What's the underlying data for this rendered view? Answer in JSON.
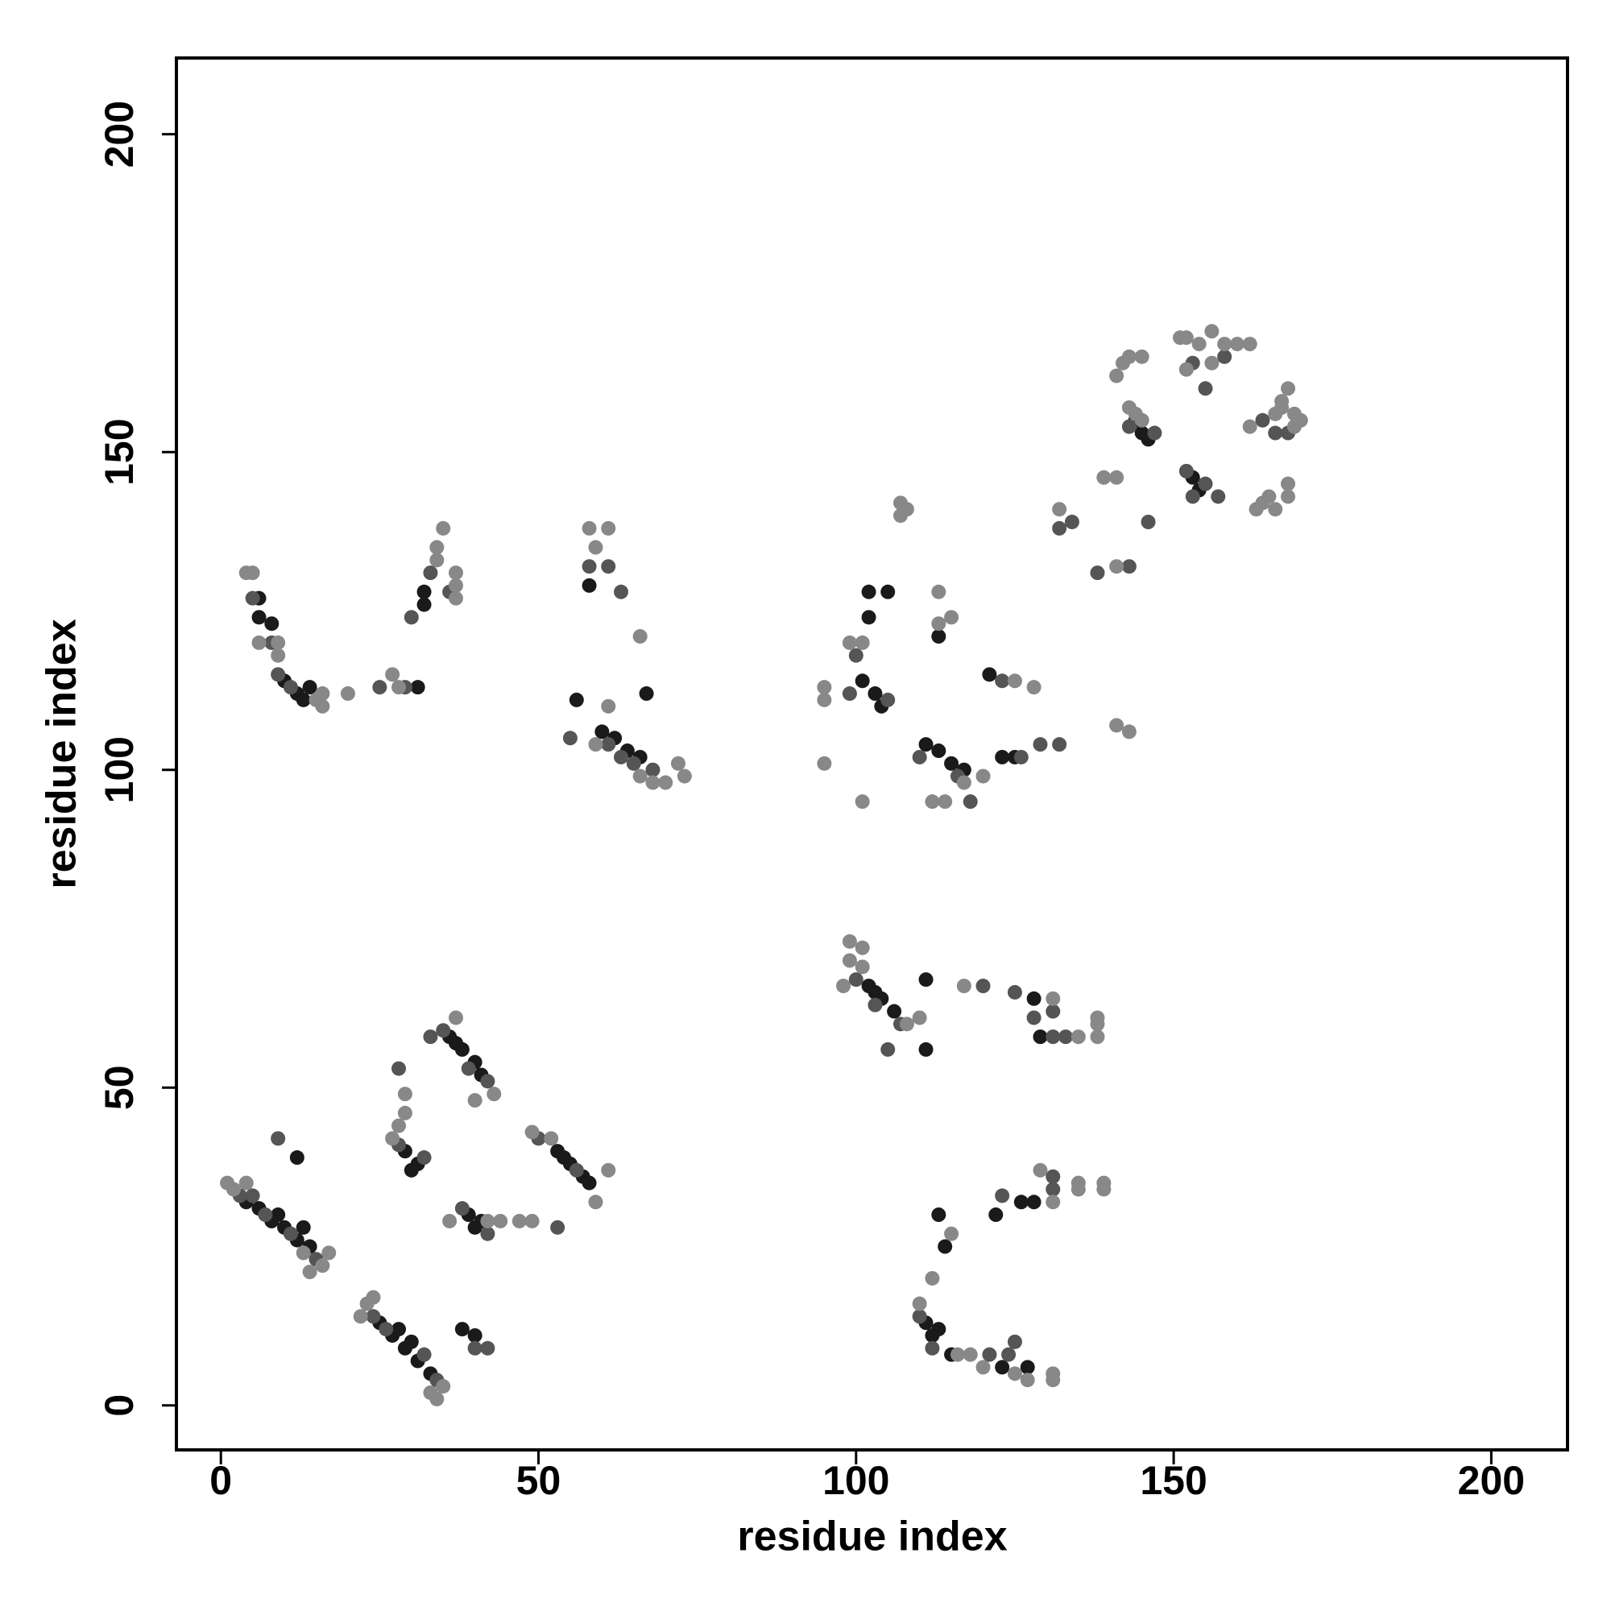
{
  "chart_data": {
    "type": "scatter",
    "x_label": "residue index",
    "y_label": "residue index",
    "xlim": [
      -7,
      212
    ],
    "ylim": [
      -7,
      212
    ],
    "xticks": [
      0,
      50,
      100,
      150,
      200
    ],
    "yticks": [
      0,
      50,
      100,
      150,
      200
    ],
    "series": [
      {
        "color": "#1a1a1a",
        "x": [
          4,
          6,
          8,
          10,
          12,
          14,
          9,
          13,
          25,
          27,
          29,
          30,
          31,
          33,
          28,
          36,
          38,
          40,
          41,
          37,
          29,
          31,
          30,
          39,
          40,
          41,
          53,
          55,
          57,
          58,
          54,
          38,
          40,
          12,
          6,
          6,
          8,
          10,
          12,
          13,
          14,
          31,
          32,
          32,
          58,
          60,
          62,
          64,
          66,
          67,
          56,
          101,
          103,
          104,
          102,
          102,
          105,
          111,
          113,
          115,
          117,
          113,
          121,
          123,
          125,
          102,
          104,
          106,
          103,
          111,
          111,
          128,
          129,
          111,
          112,
          113,
          115,
          113,
          114,
          126,
          128,
          122,
          127,
          123,
          145,
          146,
          153,
          154,
          144
        ],
        "values": [
          32,
          31,
          29,
          28,
          26,
          25,
          30,
          28,
          13,
          11,
          9,
          10,
          7,
          5,
          12,
          58,
          56,
          54,
          52,
          57,
          40,
          38,
          37,
          30,
          28,
          29,
          40,
          38,
          36,
          35,
          39,
          12,
          11,
          39,
          127,
          124,
          123,
          114,
          112,
          111,
          113,
          113,
          128,
          126,
          129,
          106,
          105,
          103,
          102,
          112,
          111,
          114,
          112,
          110,
          124,
          128,
          128,
          104,
          103,
          101,
          100,
          121,
          115,
          102,
          102,
          66,
          64,
          62,
          65,
          67,
          56,
          64,
          58,
          13,
          11,
          12,
          8,
          30,
          25,
          32,
          32,
          30,
          6,
          6,
          153,
          152,
          146,
          144,
          155
        ]
      },
      {
        "color": "#555555",
        "x": [
          3,
          5,
          7,
          11,
          15,
          24,
          26,
          32,
          34,
          35,
          39,
          42,
          28,
          28,
          32,
          33,
          38,
          42,
          50,
          56,
          53,
          9,
          40,
          42,
          5,
          8,
          9,
          11,
          25,
          29,
          30,
          33,
          36,
          58,
          61,
          63,
          55,
          61,
          63,
          65,
          68,
          100,
          99,
          105,
          110,
          116,
          123,
          118,
          126,
          129,
          132,
          100,
          103,
          107,
          105,
          120,
          125,
          128,
          131,
          131,
          133,
          110,
          112,
          121,
          124,
          125,
          131,
          131,
          123,
          132,
          134,
          143,
          138,
          146,
          152,
          153,
          155,
          157,
          155,
          153,
          158,
          164,
          166,
          168,
          143,
          147
        ],
        "values": [
          33,
          33,
          30,
          27,
          23,
          14,
          12,
          8,
          4,
          59,
          53,
          51,
          53,
          41,
          39,
          58,
          31,
          27,
          42,
          37,
          28,
          42,
          9,
          9,
          127,
          120,
          115,
          113,
          113,
          113,
          124,
          131,
          128,
          132,
          132,
          128,
          105,
          104,
          102,
          101,
          100,
          118,
          112,
          111,
          102,
          99,
          114,
          95,
          102,
          104,
          104,
          67,
          63,
          60,
          56,
          66,
          65,
          61,
          62,
          58,
          58,
          14,
          9,
          8,
          8,
          10,
          34,
          36,
          33,
          138,
          139,
          132,
          131,
          139,
          147,
          143,
          145,
          143,
          160,
          164,
          165,
          155,
          153,
          153,
          154,
          153
        ]
      },
      {
        "color": "#888888",
        "x": [
          1,
          2,
          4,
          13,
          14,
          16,
          17,
          22,
          23,
          24,
          33,
          34,
          35,
          37,
          40,
          43,
          28,
          29,
          27,
          29,
          36,
          42,
          44,
          47,
          49,
          52,
          59,
          61,
          49,
          4,
          5,
          6,
          9,
          9,
          15,
          16,
          16,
          20,
          27,
          28,
          34,
          34,
          35,
          37,
          37,
          37,
          58,
          59,
          61,
          61,
          59,
          66,
          66,
          68,
          70,
          72,
          73,
          95,
          95,
          95,
          99,
          101,
          101,
          107,
          107,
          108,
          113,
          113,
          115,
          112,
          114,
          117,
          120,
          125,
          128,
          99,
          99,
          101,
          101,
          98,
          108,
          110,
          117,
          131,
          135,
          138,
          138,
          138,
          110,
          116,
          118,
          120,
          115,
          125,
          127,
          131,
          131,
          129,
          131,
          135,
          135,
          139,
          139,
          112,
          132,
          139,
          141,
          141,
          141,
          142,
          143,
          145,
          141,
          143,
          143,
          144,
          145,
          151,
          152,
          154,
          156,
          158,
          160,
          162,
          152,
          156,
          163,
          164,
          165,
          166,
          168,
          168,
          167,
          168,
          169,
          169,
          170,
          167,
          162,
          166
        ],
        "values": [
          35,
          34,
          35,
          24,
          21,
          22,
          24,
          14,
          16,
          17,
          2,
          1,
          3,
          61,
          48,
          49,
          44,
          46,
          42,
          49,
          29,
          29,
          29,
          29,
          43,
          42,
          32,
          37,
          29,
          131,
          131,
          120,
          120,
          118,
          111,
          110,
          112,
          112,
          115,
          113,
          133,
          135,
          138,
          131,
          129,
          127,
          138,
          135,
          138,
          110,
          104,
          121,
          99,
          98,
          98,
          101,
          99,
          113,
          111,
          101,
          120,
          120,
          95,
          140,
          142,
          141,
          128,
          123,
          124,
          95,
          95,
          98,
          99,
          114,
          113,
          70,
          73,
          72,
          69,
          66,
          60,
          61,
          66,
          64,
          58,
          58,
          60,
          61,
          16,
          8,
          8,
          6,
          27,
          5,
          4,
          4,
          5,
          37,
          32,
          35,
          34,
          35,
          34,
          20,
          141,
          146,
          146,
          132,
          162,
          164,
          165,
          165,
          107,
          106,
          157,
          156,
          155,
          168,
          168,
          167,
          169,
          167,
          167,
          167,
          163,
          164,
          141,
          142,
          143,
          141,
          145,
          143,
          158,
          160,
          156,
          154,
          155,
          157,
          154,
          156
        ]
      }
    ]
  }
}
